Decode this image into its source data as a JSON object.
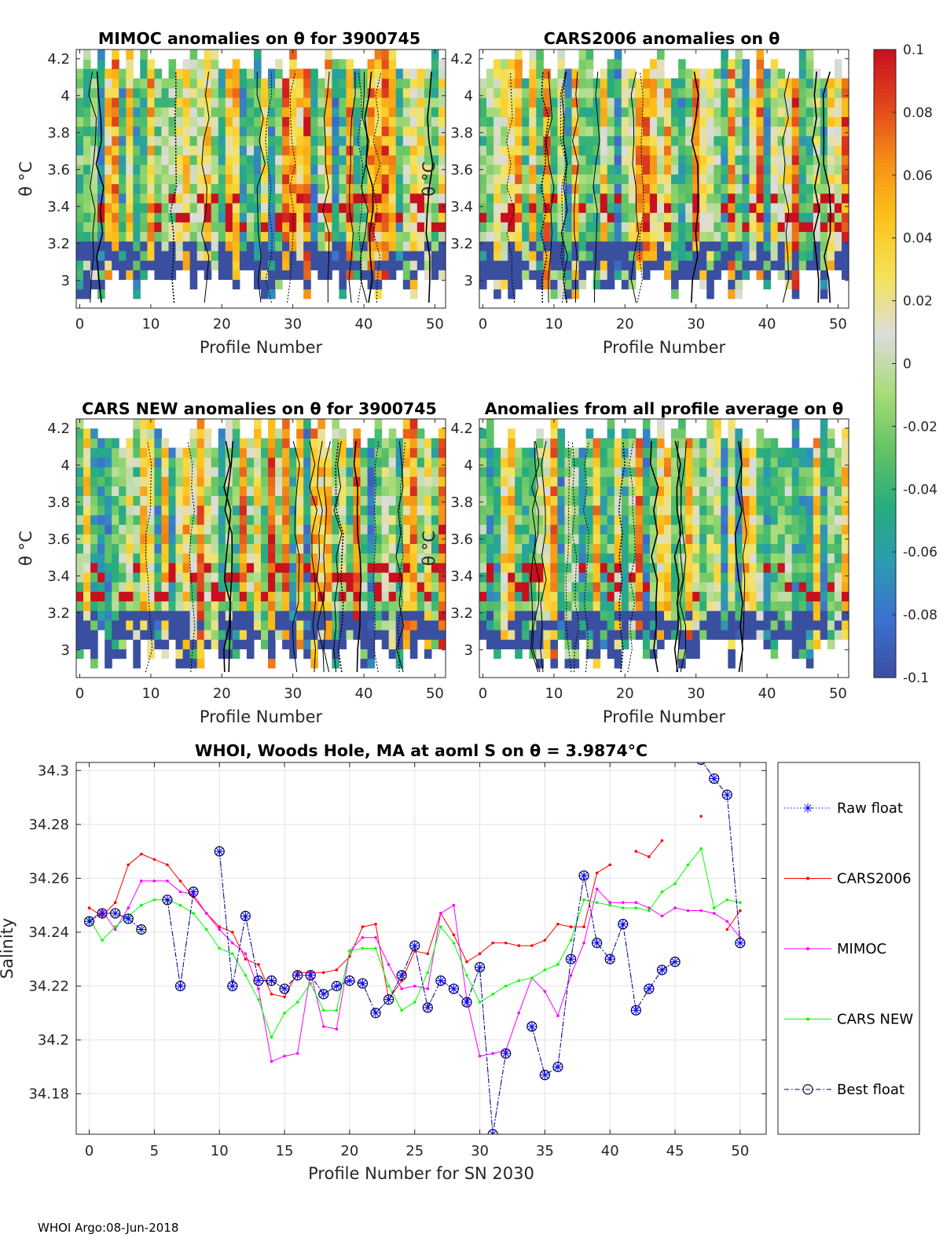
{
  "footer": "WHOI Argo:08-Jun-2018",
  "colorbar": {
    "min": -0.1,
    "max": 0.1,
    "tick_labels": [
      "0.1",
      "0.08",
      "0.06",
      "0.04",
      "0.02",
      "0",
      "-0.02",
      "-0.04",
      "-0.06",
      "-0.08",
      "-0.1"
    ],
    "stops": [
      "#3b4fa0",
      "#3d6fd0",
      "#2b9bb0",
      "#27ad7c",
      "#64c464",
      "#a8dc78",
      "#dcdcdc",
      "#f3e35a",
      "#fdc41c",
      "#f59215",
      "#e2461c",
      "#c8101e"
    ]
  },
  "chart_data": [
    {
      "type": "heatmap",
      "title": "MIMOC anomalies on θ  for 3900745",
      "xlabel": "Profile Number",
      "ylabel": "θ °C",
      "xlim": [
        -0.5,
        51.5
      ],
      "ylim": [
        2.85,
        4.25
      ],
      "xticks": [
        "0",
        "10",
        "20",
        "30",
        "40",
        "50"
      ],
      "yticks": [
        "3",
        "3.2",
        "3.4",
        "3.6",
        "3.8",
        "4",
        "4.2"
      ],
      "seed": 11
    },
    {
      "type": "heatmap",
      "title": "CARS2006 anomalies on θ",
      "xlabel": "Profile Number",
      "ylabel": "θ °C",
      "xlim": [
        -0.5,
        51.5
      ],
      "ylim": [
        2.85,
        4.25
      ],
      "xticks": [
        "0",
        "10",
        "20",
        "30",
        "40",
        "50"
      ],
      "yticks": [
        "3",
        "3.2",
        "3.4",
        "3.6",
        "3.8",
        "4",
        "4.2"
      ],
      "seed": 23
    },
    {
      "type": "heatmap",
      "title": "CARS NEW anomalies on θ for 3900745",
      "xlabel": "Profile Number",
      "ylabel": "θ °C",
      "xlim": [
        -0.5,
        51.5
      ],
      "ylim": [
        2.85,
        4.25
      ],
      "xticks": [
        "0",
        "10",
        "20",
        "30",
        "40",
        "50"
      ],
      "yticks": [
        "3",
        "3.2",
        "3.4",
        "3.6",
        "3.8",
        "4",
        "4.2"
      ],
      "seed": 37
    },
    {
      "type": "heatmap",
      "title": "Anomalies from all profile average on θ",
      "xlabel": "Profile Number",
      "ylabel": "θ °C",
      "xlim": [
        -0.5,
        51.5
      ],
      "ylim": [
        2.85,
        4.25
      ],
      "xticks": [
        "0",
        "10",
        "20",
        "30",
        "40",
        "50"
      ],
      "yticks": [
        "3",
        "3.2",
        "3.4",
        "3.6",
        "3.8",
        "4",
        "4.2"
      ],
      "seed": 53
    },
    {
      "type": "line",
      "title_main": "WHOI, Woods Hole, MA at aoml S on θ = 3.9874",
      "title_unit": "°C",
      "xlabel": "Profile Number for SN 2030",
      "ylabel": "Salinity",
      "xlim": [
        -1,
        52
      ],
      "ylim": [
        34.165,
        34.303
      ],
      "xticks": [
        0,
        5,
        10,
        15,
        20,
        25,
        30,
        35,
        40,
        45,
        50
      ],
      "yticks": [
        34.18,
        34.2,
        34.22,
        34.24,
        34.26,
        34.28,
        34.3
      ],
      "ytick_labels": [
        "34.18",
        "34.2",
        "34.22",
        "34.24",
        "34.26",
        "34.28",
        "34.3"
      ],
      "x": [
        0,
        1,
        2,
        3,
        4,
        5,
        6,
        7,
        8,
        9,
        10,
        11,
        12,
        13,
        14,
        15,
        16,
        17,
        18,
        19,
        20,
        21,
        22,
        23,
        24,
        25,
        26,
        27,
        28,
        29,
        30,
        31,
        32,
        33,
        34,
        35,
        36,
        37,
        38,
        39,
        40,
        41,
        42,
        43,
        44,
        45,
        46,
        47,
        48,
        49,
        50
      ],
      "series": [
        {
          "name": "Raw float",
          "color": "#0000ff",
          "style": "dotted",
          "marker": "star",
          "values": [
            34.244,
            34.247,
            34.247,
            34.245,
            34.241,
            null,
            34.252,
            34.22,
            34.255,
            null,
            34.27,
            34.22,
            34.246,
            34.222,
            34.222,
            34.219,
            34.224,
            34.224,
            34.217,
            34.22,
            34.222,
            34.221,
            34.21,
            34.215,
            34.224,
            34.235,
            34.212,
            34.222,
            34.219,
            34.214,
            34.227,
            34.165,
            34.195,
            null,
            34.205,
            34.187,
            34.19,
            34.23,
            34.261,
            34.236,
            34.23,
            34.243,
            34.211,
            34.219,
            34.226,
            34.229,
            null,
            34.304,
            34.297,
            34.291,
            34.236
          ]
        },
        {
          "name": "CARS2006",
          "color": "#ff0000",
          "style": "solid",
          "marker": "dot",
          "values": [
            34.249,
            34.246,
            34.251,
            34.265,
            34.269,
            34.267,
            34.265,
            34.259,
            34.253,
            34.247,
            34.242,
            34.24,
            34.23,
            34.228,
            34.217,
            34.216,
            34.225,
            34.225,
            34.225,
            34.226,
            34.231,
            34.242,
            34.243,
            34.215,
            34.222,
            34.233,
            34.232,
            34.247,
            34.239,
            34.229,
            34.232,
            34.236,
            34.236,
            34.235,
            34.235,
            34.237,
            34.243,
            34.242,
            34.242,
            34.262,
            34.265,
            null,
            34.27,
            34.268,
            34.274,
            null,
            null,
            34.283,
            null,
            34.241,
            34.248
          ]
        },
        {
          "name": "MIMOC",
          "color": "#ff00ff",
          "style": "solid",
          "marker": "dot",
          "values": [
            34.244,
            34.248,
            34.241,
            34.249,
            34.259,
            34.259,
            34.259,
            34.255,
            34.254,
            34.247,
            34.241,
            34.236,
            34.232,
            34.219,
            34.192,
            34.194,
            34.195,
            34.225,
            34.205,
            34.204,
            34.233,
            34.238,
            34.238,
            34.228,
            34.219,
            34.22,
            34.219,
            34.247,
            34.25,
            34.215,
            34.194,
            34.195,
            34.196,
            34.21,
            34.223,
            34.218,
            34.209,
            34.224,
            34.236,
            34.256,
            34.251,
            34.251,
            34.251,
            34.249,
            34.246,
            34.249,
            34.248,
            34.248,
            34.247,
            34.244,
            34.238
          ]
        },
        {
          "name": "CARS NEW",
          "color": "#00ff00",
          "style": "solid",
          "marker": "dot",
          "values": [
            34.245,
            34.237,
            34.242,
            34.246,
            34.25,
            34.252,
            34.252,
            34.25,
            34.247,
            34.241,
            34.234,
            34.232,
            34.224,
            34.215,
            34.201,
            34.21,
            34.214,
            34.221,
            34.211,
            34.211,
            34.233,
            34.234,
            34.234,
            34.22,
            34.211,
            34.214,
            34.225,
            34.242,
            34.236,
            34.224,
            34.214,
            34.217,
            34.22,
            34.222,
            34.223,
            34.226,
            34.228,
            34.237,
            34.252,
            34.251,
            34.25,
            34.249,
            34.249,
            34.248,
            34.255,
            34.258,
            34.265,
            34.271,
            34.249,
            34.252,
            34.251
          ]
        },
        {
          "name": "Best float",
          "color": "#000033",
          "style": "dashdot",
          "marker": "circle",
          "values": [
            34.244,
            34.247,
            34.247,
            34.245,
            34.241,
            null,
            34.252,
            34.22,
            34.255,
            null,
            34.27,
            34.22,
            34.246,
            34.222,
            34.222,
            34.219,
            34.224,
            34.224,
            34.217,
            34.22,
            34.222,
            34.221,
            34.21,
            34.215,
            34.224,
            34.235,
            34.212,
            34.222,
            34.219,
            34.214,
            34.227,
            34.165,
            34.195,
            null,
            34.205,
            34.187,
            34.19,
            34.23,
            34.261,
            34.236,
            34.23,
            34.243,
            34.211,
            34.219,
            34.226,
            34.229,
            null,
            34.304,
            34.297,
            34.291,
            34.236
          ]
        }
      ]
    }
  ]
}
